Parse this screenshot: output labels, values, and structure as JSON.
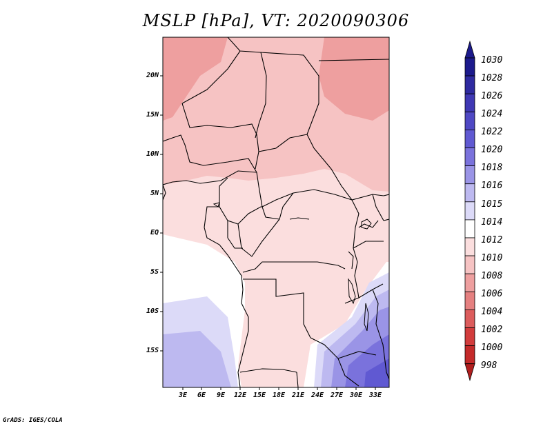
{
  "title": "MSLP [hPa], VT: 2020090306",
  "footer": "GrADS: IGES/COLA",
  "lat_labels": [
    "20N",
    "15N",
    "10N",
    "5N",
    "EQ",
    "5S",
    "10S",
    "15S"
  ],
  "lon_labels": [
    "3E",
    "6E",
    "9E",
    "12E",
    "15E",
    "18E",
    "21E",
    "24E",
    "27E",
    "30E",
    "33E"
  ],
  "colorbar": {
    "labels": [
      "1030",
      "1028",
      "1026",
      "1024",
      "1022",
      "1020",
      "1018",
      "1016",
      "1015",
      "1014",
      "1012",
      "1010",
      "1008",
      "1006",
      "1004",
      "1002",
      "1000",
      "998"
    ],
    "colors": [
      "#1c1a8c",
      "#2e2aa0",
      "#3f38b4",
      "#4f48c4",
      "#6059d2",
      "#7a72dc",
      "#9a94e6",
      "#bdb9f0",
      "#dcdaf8",
      "#ffffff",
      "#fbdede",
      "#f6c3c3",
      "#ee9f9f",
      "#e58080",
      "#dc5c5c",
      "#d23c3c",
      "#c42a2a",
      "#b01e1e"
    ]
  },
  "field_colors": {
    "p1008": "#ee9f9f",
    "p1010": "#f6c3c3",
    "p1012": "#fbdede",
    "p1014": "#ffffff",
    "p1016": "#dcdaf8",
    "p1018": "#bdb9f0",
    "p1020": "#9a94e6",
    "p1022": "#7a72dc",
    "p1024": "#6059d2"
  }
}
